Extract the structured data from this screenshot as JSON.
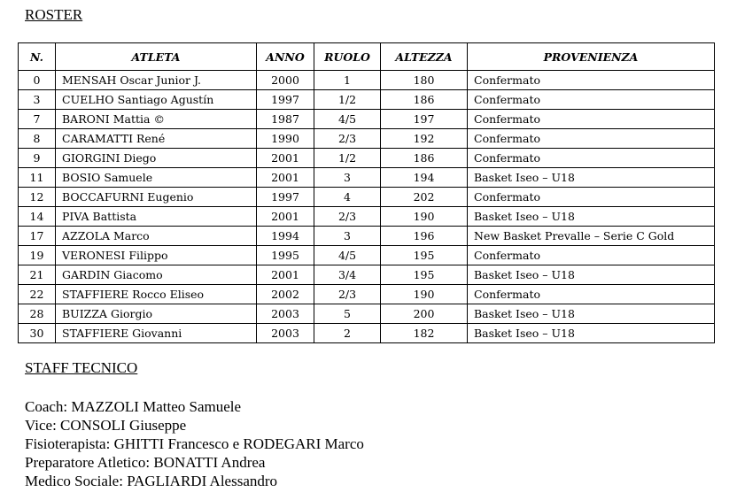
{
  "roster_title": "ROSTER",
  "columns": [
    "N.",
    "ATLETA",
    "ANNO",
    "RUOLO",
    "ALTEZZA",
    "PROVENIENZA"
  ],
  "rows": [
    [
      "0",
      "MENSAH Oscar Junior J.",
      "2000",
      "1",
      "180",
      "Confermato"
    ],
    [
      "3",
      "CUELHO Santiago Agustín",
      "1997",
      "1/2",
      "186",
      "Confermato"
    ],
    [
      "7",
      "BARONI Mattia ©",
      "1987",
      "4/5",
      "197",
      "Confermato"
    ],
    [
      "8",
      "CARAMATTI René",
      "1990",
      "2/3",
      "192",
      "Confermato"
    ],
    [
      "9",
      "GIORGINI Diego",
      "2001",
      "1/2",
      "186",
      "Confermato"
    ],
    [
      "11",
      "BOSIO Samuele",
      "2001",
      "3",
      "194",
      "Basket Iseo – U18"
    ],
    [
      "12",
      "BOCCAFURNI Eugenio",
      "1997",
      "4",
      "202",
      "Confermato"
    ],
    [
      "14",
      "PIVA Battista",
      "2001",
      "2/3",
      "190",
      "Basket Iseo – U18"
    ],
    [
      "17",
      "AZZOLA Marco",
      "1994",
      "3",
      "196",
      "New Basket Prevalle – Serie C Gold"
    ],
    [
      "19",
      "VERONESI Filippo",
      "1995",
      "4/5",
      "195",
      "Confermato"
    ],
    [
      "21",
      "GARDIN Giacomo",
      "2001",
      "3/4",
      "195",
      "Basket Iseo – U18"
    ],
    [
      "22",
      "STAFFIERE Rocco Eliseo",
      "2002",
      "2/3",
      "190",
      "Confermato"
    ],
    [
      "28",
      "BUIZZA Giorgio",
      "2003",
      "5",
      "200",
      "Basket Iseo – U18"
    ],
    [
      "30",
      "STAFFIERE Giovanni",
      "2003",
      "2",
      "182",
      "Basket Iseo – U18"
    ]
  ],
  "staff_title": "STAFF TECNICO",
  "staff": [
    "Coach: MAZZOLI Matteo Samuele",
    "Vice: CONSOLI Giuseppe",
    "Fisioterapista: GHITTI Francesco e RODEGARI Marco",
    "Preparatore Atletico: BONATTI Andrea",
    "Medico Sociale: PAGLIARDI Alessandro"
  ]
}
